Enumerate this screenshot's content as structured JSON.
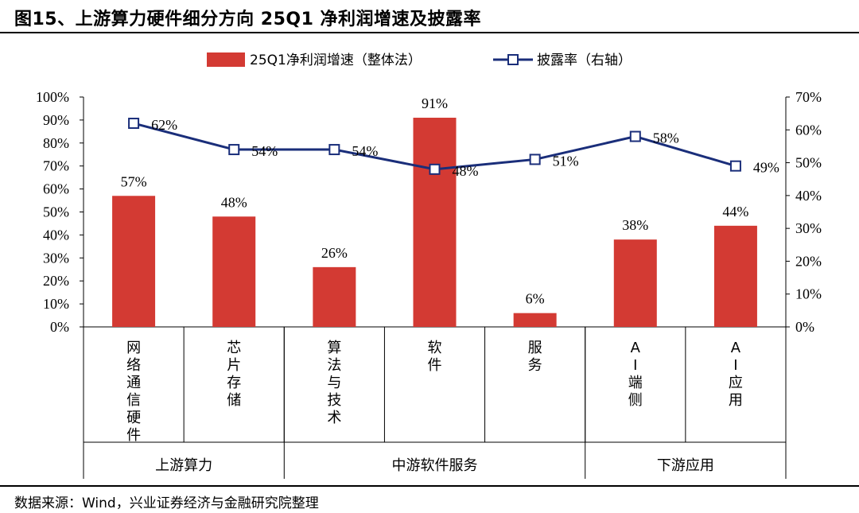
{
  "figure_title": "图15、上游算力硬件细分方向 25Q1 净利润增速及披露率",
  "source_note": "数据来源：Wind，兴业证券经济与金融研究院整理",
  "chart_data": {
    "type": "bar",
    "categories": [
      "网络通信硬件",
      "芯片存储",
      "算法与技术",
      "软件",
      "服务",
      "AI端侧",
      "AI应用"
    ],
    "groups": [
      {
        "label": "上游算力",
        "span": 2
      },
      {
        "label": "中游软件服务",
        "span": 3
      },
      {
        "label": "下游应用",
        "span": 2
      }
    ],
    "series": [
      {
        "name": "25Q1净利润增速（整体法）",
        "type": "bar",
        "axis": "left",
        "color": "#d33a33",
        "values": [
          57,
          48,
          26,
          91,
          6,
          38,
          44
        ],
        "labels": [
          "57%",
          "48%",
          "26%",
          "91%",
          "6%",
          "38%",
          "44%"
        ]
      },
      {
        "name": "披露率（右轴）",
        "type": "line",
        "axis": "right",
        "color": "#1a2e7a",
        "values": [
          62,
          54,
          54,
          48,
          51,
          58,
          49
        ],
        "labels": [
          "62%",
          "54%",
          "54%",
          "48%",
          "51%",
          "58%",
          "49%"
        ]
      }
    ],
    "left_axis": {
      "min": 0,
      "max": 100,
      "step": 10,
      "ticks": [
        "0%",
        "10%",
        "20%",
        "30%",
        "40%",
        "50%",
        "60%",
        "70%",
        "80%",
        "90%",
        "100%"
      ]
    },
    "right_axis": {
      "min": 0,
      "max": 70,
      "step": 10,
      "ticks": [
        "0%",
        "10%",
        "20%",
        "30%",
        "40%",
        "50%",
        "60%",
        "70%"
      ]
    },
    "legend_position": "top",
    "grid": false
  }
}
